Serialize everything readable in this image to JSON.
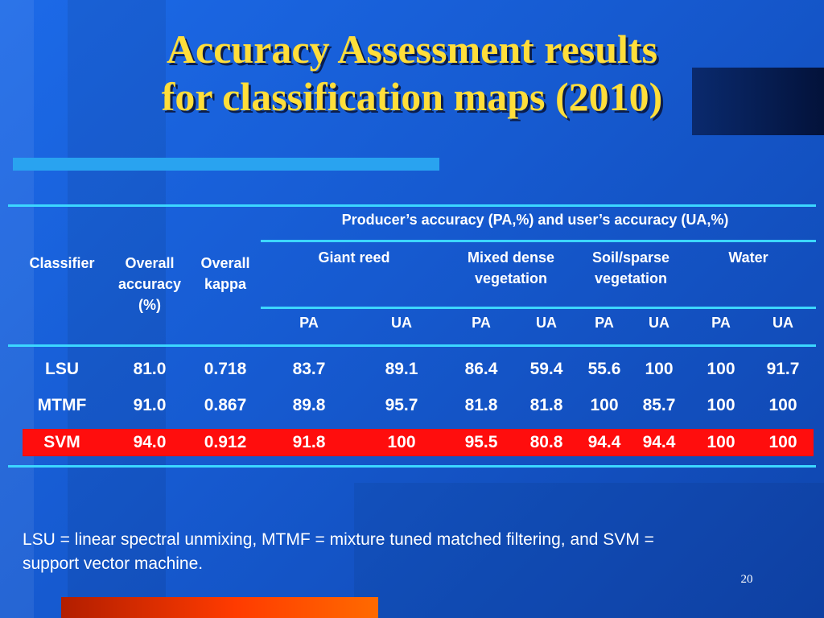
{
  "slide": {
    "title_line1": "Accuracy Assessment results",
    "title_line2": "for classification maps (2010)",
    "page_number": "20",
    "colors": {
      "title": "#ffde3a",
      "background": "#1a5fd6",
      "rule": "#3cd7ff",
      "highlight_row": "#ff0d0d",
      "bottom_bar": "#ff3b00"
    }
  },
  "table": {
    "headers": {
      "classifier": "Classifier",
      "overall_accuracy": [
        "Overall",
        "accuracy",
        "(%)"
      ],
      "overall_kappa": [
        "Overall",
        "kappa"
      ],
      "group": "Producer’s accuracy (PA,%) and user’s accuracy (UA,%)",
      "classes": [
        [
          "Giant reed"
        ],
        [
          "Mixed dense",
          "vegetation"
        ],
        [
          "Soil/sparse",
          "vegetation"
        ],
        [
          "Water"
        ]
      ],
      "sub": [
        "PA",
        "UA",
        "PA",
        "UA",
        "PA",
        "UA",
        "PA",
        "UA"
      ]
    },
    "rows": [
      {
        "name": "LSU",
        "values": [
          "81.0",
          "0.718",
          "83.7",
          "89.1",
          "86.4",
          "59.4",
          "55.6",
          "100",
          "100",
          "91.7"
        ],
        "highlighted": false
      },
      {
        "name": "MTMF",
        "values": [
          "91.0",
          "0.867",
          "89.8",
          "95.7",
          "81.8",
          "81.8",
          "100",
          "85.7",
          "100",
          "100"
        ],
        "highlighted": false
      },
      {
        "name": "SVM",
        "values": [
          "94.0",
          "0.912",
          "91.8",
          "100",
          "95.5",
          "80.8",
          "94.4",
          "94.4",
          "100",
          "100"
        ],
        "highlighted": true
      }
    ]
  },
  "footnote": {
    "line1": "LSU = linear spectral unmixing, MTMF = mixture tuned matched filtering, and SVM =",
    "line2": "support vector machine."
  }
}
